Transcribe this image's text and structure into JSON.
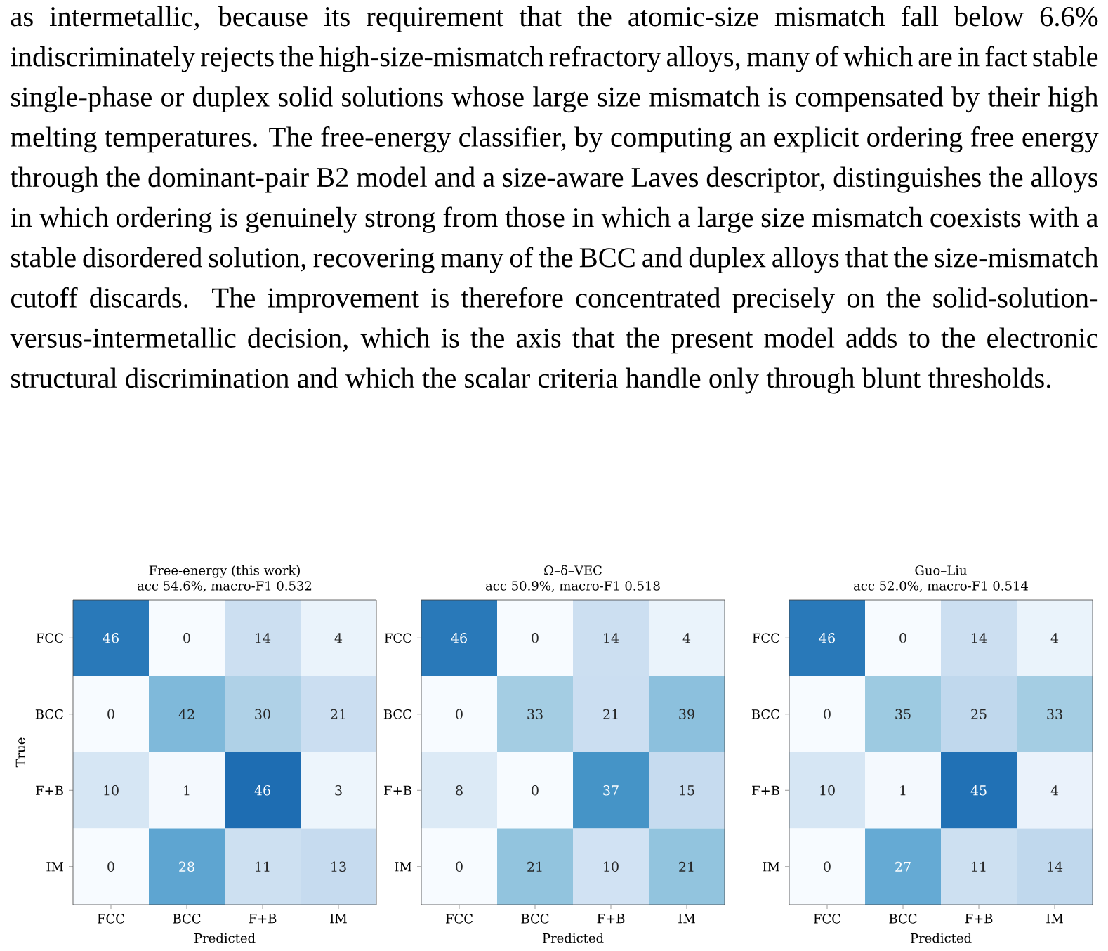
{
  "chart_data": [
    {
      "type": "other",
      "annotations": [
        "as intermetallic, because its requirement that the atomic-size mismatch fall below 6.6% indiscriminately rejects the high-size-mismatch refractory alloys, many of which are in fact stable single-phase or duplex solid solutions whose large size mismatch is compensated by their high melting temperatures. The free-energy classifier, by computing an explicit ordering free energy through the dominant-pair B2 model and a size-aware Laves descriptor, distinguishes the alloys in which ordering is genuinely strong from those in which a large size mismatch coexists with a stable disordered solution, recovering many of the BCC and duplex alloys that the size-mismatch cutoff discards. The improvement is therefore concentrated precisely on the solid-solution-versus-intermetallic decision, which is the axis that the present model adds to the electronic structural discrimination and which the scalar criteria handle only through blunt thresholds."
      ]
    },
    {
      "type": "heatmap",
      "title": "Free-energy (this work)",
      "subtitle": "acc 54.6%, macro-F1 0.532",
      "xlabel": "Predicted",
      "ylabel": "True",
      "categories": [
        "FCC",
        "BCC",
        "F+B",
        "IM"
      ],
      "y_categories": [
        "FCC",
        "BCC",
        "F+B",
        "IM"
      ],
      "data_labels": true,
      "cells": [
        [
          46,
          0,
          14,
          4
        ],
        [
          0,
          42,
          30,
          21
        ],
        [
          10,
          1,
          46,
          3
        ],
        [
          0,
          28,
          11,
          13
        ]
      ]
    },
    {
      "type": "heatmap",
      "title": "Ω–δ–VEC",
      "subtitle": "acc 50.9%, macro-F1 0.518",
      "xlabel": "Predicted",
      "categories": [
        "FCC",
        "BCC",
        "F+B",
        "IM"
      ],
      "y_categories": [
        "FCC",
        "BCC",
        "F+B",
        "IM"
      ],
      "data_labels": true,
      "cells": [
        [
          46,
          0,
          14,
          4
        ],
        [
          0,
          33,
          21,
          39
        ],
        [
          8,
          0,
          37,
          15
        ],
        [
          0,
          21,
          10,
          21
        ]
      ]
    },
    {
      "type": "heatmap",
      "title": "Guo–Liu",
      "subtitle": "acc 52.0%, macro-F1 0.514",
      "xlabel": "Predicted",
      "categories": [
        "FCC",
        "BCC",
        "F+B",
        "IM"
      ],
      "y_categories": [
        "FCC",
        "BCC",
        "F+B",
        "IM"
      ],
      "data_labels": true,
      "cells": [
        [
          46,
          0,
          14,
          4
        ],
        [
          0,
          35,
          25,
          33
        ],
        [
          10,
          1,
          45,
          4
        ],
        [
          0,
          27,
          11,
          14
        ]
      ]
    }
  ]
}
